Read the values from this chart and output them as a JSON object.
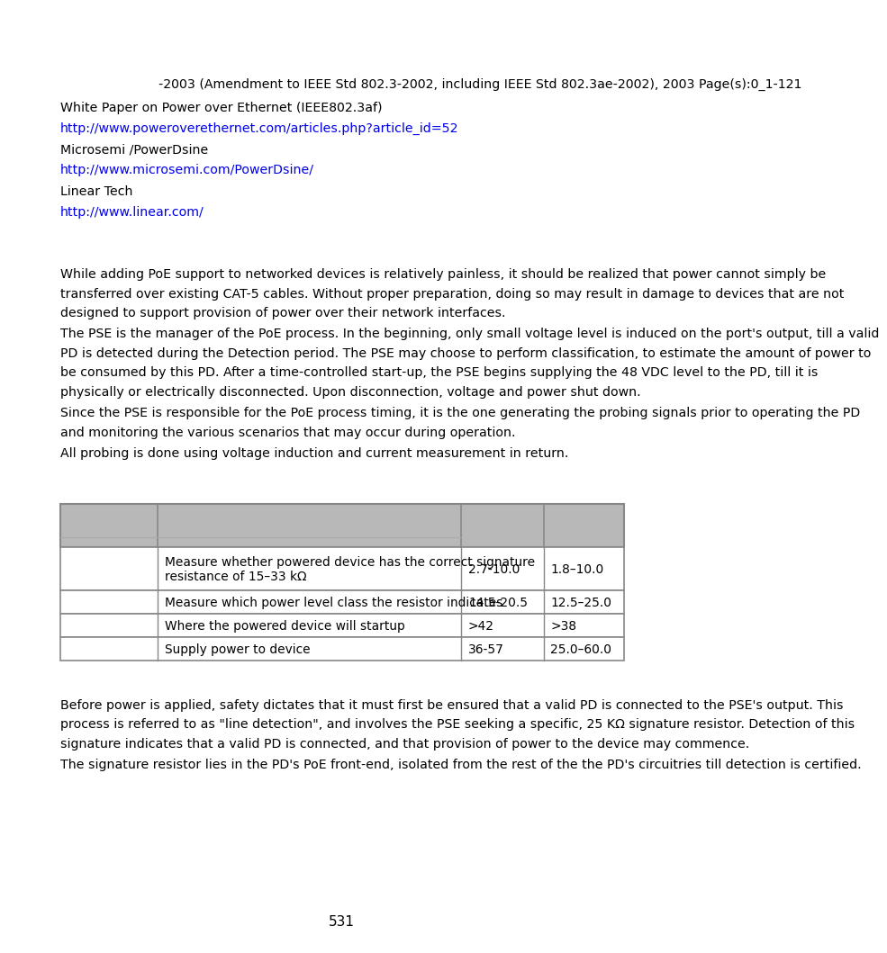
{
  "line1": "-2003 (Amendment to IEEE Std 802.3-2002, including IEEE Std 802.3ae-2002), 2003 Page(s):0_1-121",
  "line2": "White Paper on Power over Ethernet (IEEE802.3af)",
  "link1": "http://www.poweroverethernet.com/articles.php?article_id=52",
  "line3": "Microsemi /PowerDsine",
  "link2": "http://www.microsemi.com/PowerDsine/",
  "line4": "Linear Tech",
  "link3": "http://www.linear.com/",
  "para1_lines": [
    "While adding PoE support to networked devices is relatively painless, it should be realized that power cannot simply be",
    "transferred over existing CAT-5 cables. Without proper preparation, doing so may result in damage to devices that are not",
    "designed to support provision of power over their network interfaces."
  ],
  "para2_lines": [
    "The PSE is the manager of the PoE process. In the beginning, only small voltage level is induced on the port's output, till a valid",
    "PD is detected during the Detection period. The PSE may choose to perform classification, to estimate the amount of power to",
    "be consumed by this PD. After a time-controlled start-up, the PSE begins supplying the 48 VDC level to the PD, till it is",
    "physically or electrically disconnected. Upon disconnection, voltage and power shut down."
  ],
  "para3_lines": [
    "Since the PSE is responsible for the PoE process timing, it is the one generating the probing signals prior to operating the PD",
    "and monitoring the various scenarios that may occur during operation."
  ],
  "para4_lines": [
    "All probing is done using voltage induction and current measurement in return."
  ],
  "table_rows": [
    [
      "",
      "Measure whether powered device has the correct signature\nresistance of 15–33 kΩ",
      "2.7-10.0",
      "1.8–10.0"
    ],
    [
      "",
      "Measure which power level class the resistor indicates",
      "14.5-20.5",
      "12.5–25.0"
    ],
    [
      "",
      "Where the powered device will startup",
      ">42",
      ">38"
    ],
    [
      "",
      "Supply power to device",
      "36-57",
      "25.0–60.0"
    ]
  ],
  "para5_lines": [
    "Before power is applied, safety dictates that it must first be ensured that a valid PD is connected to the PSE's output. This",
    "process is referred to as \"line detection\", and involves the PSE seeking a specific, 25 KΩ signature resistor. Detection of this",
    "signature indicates that a valid PD is connected, and that provision of power to the device may commence."
  ],
  "para6_lines": [
    "The signature resistor lies in the PD's PoE front-end, isolated from the rest of the the PD's circuitries till detection is certified."
  ],
  "page_number": "531",
  "bg_color": "#ffffff",
  "text_color": "#000000",
  "link_color": "#0000ee",
  "header_bg": "#b8b8b8",
  "table_border": "#888888",
  "font_size_body": 10.2,
  "font_size_page": 11.0
}
